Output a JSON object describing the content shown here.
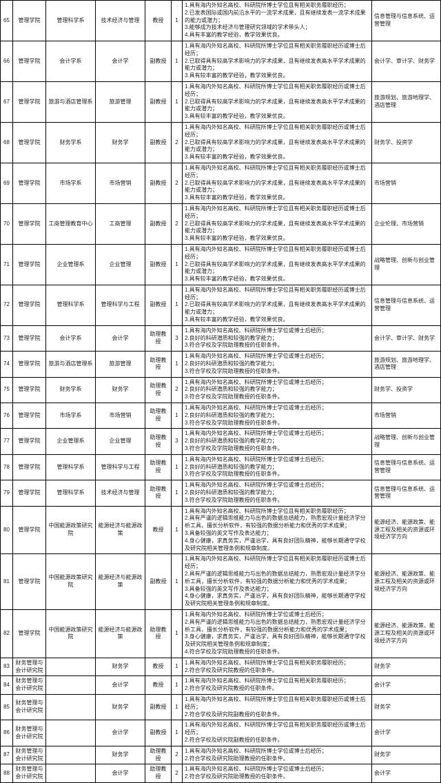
{
  "rows": [
    {
      "idx": "65",
      "college": "管理学院",
      "dept": "管理科学系",
      "major": "技术经济与管理",
      "title": "教授",
      "num": "1",
      "reqs": [
        "1.具有海内外知名高校、科研院所博士学位且有相关职务履职经历；",
        "2.已发表国际或国内前沿水平的一流学术成果，且有继续发表一流学术成果的能力或潜力；",
        "3.能够成为技术经济与管理研究领域的学术带头人；",
        "4.具有丰富的教学经验，教学效果优良。"
      ],
      "dir": "信息管理与信息系统、运营管理"
    },
    {
      "idx": "66",
      "college": "管理学院",
      "dept": "会计学系",
      "major": "会计学",
      "title": "副教授",
      "num": "1",
      "reqs": [
        "1.具有海内外知名高校、科研院所博士学位且有相关职务履职经历或博士后经历；",
        "2.已取得具有较高学术影响力的学术成果，且有继续发表高水平学术成果的能力或潜力；",
        "3.具有较丰富的教学经验，教学效果优良。"
      ],
      "dir": "会计学、审计学、财务学"
    },
    {
      "idx": "67",
      "college": "管理学院",
      "dept": "旅游与酒店管理系",
      "major": "旅游管理",
      "title": "副教授",
      "num": "1",
      "reqs": [
        "1.具有海内外知名高校、科研院所博士学位且有相关职务履职经历或博士后经历；",
        "2.已取得具有较高学术影响力的学术成果，且有继续发表高水平学术成果的能力或潜力；",
        "3.具有较丰富的教学经验，教学效果优良。"
      ],
      "dir": "旅游规划、旅游地理学、酒店管理"
    },
    {
      "idx": "68",
      "college": "管理学院",
      "dept": "财务学系",
      "major": "财务学",
      "title": "副教授",
      "num": "2",
      "reqs": [
        "1.具有海内外知名高校、科研院所博士学位且有相关职务履职经历或博士后经历；",
        "2.已取得具有较高学术影响力的学术成果，且有继续发表高水平学术成果的能力或潜力；",
        "3.具有较丰富的教学经验，教学效果优良。"
      ],
      "dir": "财务学、投资学"
    },
    {
      "idx": "69",
      "college": "管理学院",
      "dept": "市场学系",
      "major": "市场营销",
      "title": "副教授",
      "num": "2",
      "reqs": [
        "1.具有海内外知名高校、科研院所博士学位且有相关职务履职经历或博士后经历；",
        "2.已取得具有较高学术影响力的学术成果，且有继续发表高水平学术成果的能力或潜力；",
        "3.具有较丰富的教学经验，教学效果优良。"
      ],
      "dir": "市场营销"
    },
    {
      "idx": "70",
      "college": "管理学院",
      "dept": "工商管理教育中心",
      "major": "工商管理",
      "title": "副教授",
      "num": "2",
      "reqs": [
        "1.具有海内外知名高校、科研院所博士学位且有相关职务履职经历或博士后经历；",
        "2.已取得具有较高学术影响力的学术成果，且有继续发表高水平学术成果的能力或潜力；",
        "3.具有较丰富的教学经验，教学效果优良。"
      ],
      "dir": "企业伦理、市场营销"
    },
    {
      "idx": "71",
      "college": "管理学院",
      "dept": "企业管理系",
      "major": "企业管理",
      "title": "副教授",
      "num": "1",
      "reqs": [
        "1.具有海内外知名高校、科研院所博士学位且有相关职务履职经历或博士后经历；",
        "2.已取得具有较高学术影响力的学术成果，且有继续发表高水平学术成果的能力或潜力；",
        "3.具有较丰富的教学经验，教学效果优良。"
      ],
      "dir": "战略管理、创新与创业管理"
    },
    {
      "idx": "72",
      "college": "管理学院",
      "dept": "管理科学系",
      "major": "管理科学与工程",
      "title": "副教授",
      "num": "1",
      "reqs": [
        "1.具有海内外知名高校、科研院所博士学位且有相关职务履职经历或博士后经历；",
        "2.已取得具有较高学术影响力的学术成果，且有继续发表高水平学术成果的能力或潜力；",
        "3.具有较丰富的教学经验，教学效果优良。"
      ],
      "dir": "信息管理与信息系统、运营管理"
    },
    {
      "idx": "73",
      "college": "管理学院",
      "dept": "会计学系",
      "major": "会计学",
      "title": "助理教授",
      "num": "3",
      "reqs": [
        "1.具有海内外知名高校、科研院所博士学位或博士后经历；",
        "2.良好的科研潜质和较强的教学能力；",
        "3.符合学校及学院助理教授的任职条件。"
      ],
      "dir": "会计学、审计学、财务学"
    },
    {
      "idx": "74",
      "college": "管理学院",
      "dept": "旅游与酒店管理系",
      "major": "旅游管理",
      "title": "助理教授",
      "num": "1",
      "reqs": [
        "1.具有海内外知名高校、科研院所博士学位或博士后经历；",
        "2.良好的科研潜质和较强的教学能力；",
        "3.符合学校及学院助理教授的任职条件。"
      ],
      "dir": "旅游规划、旅游地理学、酒店管理"
    },
    {
      "idx": "75",
      "college": "管理学院",
      "dept": "财务学系",
      "major": "财务学",
      "title": "助理教授",
      "num": "2",
      "reqs": [
        "1.具有海内外知名高校、科研院所博士学位或博士后经历；",
        "2.良好的科研潜质和较强的教学能力；",
        "3.符合学校及学院助理教授的任职条件。"
      ],
      "dir": "财务学、投资学"
    },
    {
      "idx": "76",
      "college": "管理学院",
      "dept": "市场学系",
      "major": "市场营销",
      "title": "助理教授",
      "num": "1",
      "reqs": [
        "1.具有海内外知名高校、科研院所博士学位或博士后经历；",
        "2.良好的科研潜质和较强的教学能力；",
        "3.符合学校及学院助理教授的任职条件。"
      ],
      "dir": "市场营销"
    },
    {
      "idx": "77",
      "college": "管理学院",
      "dept": "企业管理系",
      "major": "企业管理",
      "title": "助理教授",
      "num": "3",
      "reqs": [
        "1.具有海内外知名高校、科研院所博士学位或博士后经历；",
        "2.良好的科研潜质和较强的教学能力；",
        "3.符合学校及学院助理教授的任职条件。"
      ],
      "dir": "战略管理、创新与创业管理"
    },
    {
      "idx": "78",
      "college": "管理学院",
      "dept": "管理科学系",
      "major": "管理科学与工程",
      "title": "助理教授",
      "num": "1",
      "reqs": [
        "1.具有海内外知名高校、科研院所博士学位或博士后经历；",
        "2.良好的科研潜质和较强的教学能力；",
        "3.符合学校及学院助理教授的任职条件。"
      ],
      "dir": "信息管理与信息系统、运营管理"
    },
    {
      "idx": "79",
      "college": "管理学院",
      "dept": "管理科学系",
      "major": "技术经济与管理",
      "title": "助理教授",
      "num": "1",
      "reqs": [
        "1.具有海内外知名高校、科研院所博士学位或博士后经历；",
        "2.良好的科研潜质和较强的教学能力；",
        "3.符合学校及学院助理教授的任职条件。"
      ],
      "dir": "信息管理与信息系统、运营管理"
    },
    {
      "idx": "80",
      "college": "管理学院",
      "dept": "中国能源政策研究院",
      "major": "能源经济与能源政策",
      "title": "教授",
      "num": "1",
      "reqs": [
        "1.具有海内外知名高校、科研院所博士学位且有相关职务履职经历；",
        "2.具有严谨的逻辑思维能力与出色的数据总结能力，熟悉宏观计量经济学分析工具，擅长分析软件，有较强的数据分析能力和优秀的学术成果；",
        "3.具备较强的英文写作及表达能力；",
        "4.身心健康，求真务实，严谨治学，具有良好团队精神，能够长期通守学校及研究院相关管理条例和规章制度。"
      ],
      "dir": "能源经济、能源政策、能源工程及相关的资源或环境经济学方向"
    },
    {
      "idx": "81",
      "college": "管理学院",
      "dept": "中国能源政策研究院",
      "major": "能源经济与能源政策",
      "title": "副教授",
      "num": "1",
      "reqs": [
        "1.具有海内外知名高校、科研院所博士学位且有相关职务履职经历或博士后经历；",
        "2.具有严谨的逻辑思维能力与出色的数据总结能力，熟悉宏观计量经济学分析工具，擅长分析软件，有较强的数据分析能力和优秀的学术成果；",
        "3.具备较强的英文写作及表达能力；",
        "4.身心健康，求真务实，严谨治学，具有良好团队精神，能够长期通守学校及研究院相关管理条例和规章制度。"
      ],
      "dir": "能源经济、能源政策、能源工程及相关的资源或环境经济学方向"
    },
    {
      "idx": "82",
      "college": "管理学院",
      "dept": "中国能源政策研究院",
      "major": "能源经济与能源政策",
      "title": "助理教授",
      "num": "1",
      "reqs": [
        "1.具有海内外知名高校、科研院所博士学位或博士后经历；",
        "2.具有严谨的逻辑思维能力与出色的数据总结能力，熟悉宏观计量经济学分析工具，擅长分析软件，有较强的数据分析能力和优秀的学术成果；",
        "3.身心健康，求真务实，严谨治学，具有良好团队精神，能够长期通守学校及研究院相关管理条例和规章制度；",
        "4.符合学校及学院助理教授的任职条件。"
      ],
      "dir": "能源经济、能源政策、能源工程及相关的资源或环境经济学方向"
    },
    {
      "idx": "83",
      "college": "财务管理与会计研究院",
      "dept": "",
      "major": "财务学",
      "title": "教授",
      "num": "1",
      "reqs": [
        "1.具有海内外知名高校、科研院所博士学位且有相关职务履职经历；",
        "2.符合学校及研究院教授的任职条件。"
      ],
      "dir": "财务学"
    },
    {
      "idx": "84",
      "college": "财务管理与会计研究院",
      "dept": "",
      "major": "会计学",
      "title": "教授",
      "num": "1",
      "reqs": [
        "1.具有海内外知名高校、科研院所博士学位且有相关职务履职经历；",
        "2.符合学校及研究院教授的任职条件。"
      ],
      "dir": "会计学"
    },
    {
      "idx": "85",
      "college": "财务管理与会计研究院",
      "dept": "",
      "major": "财务学",
      "title": "副教授",
      "num": "1",
      "reqs": [
        "1.具有海内外知名高校、科研院所博士学位且有相关职务履职经历或博士后经历；",
        "2.符合学校及研究院副教授的任职条件。"
      ],
      "dir": "财务学"
    },
    {
      "idx": "86",
      "college": "财务管理与会计研究院",
      "dept": "",
      "major": "会计学",
      "title": "副教授",
      "num": "1",
      "reqs": [
        "1.具有海内外知名高校、科研院所博士学位且有相关职务履职经历或博士后经历；",
        "2.符合学校及研究院副教授的任职条件。"
      ],
      "dir": "会计学"
    },
    {
      "idx": "87",
      "college": "财务管理与会计研究院",
      "dept": "",
      "major": "财务学",
      "title": "助理教授",
      "num": "2",
      "reqs": [
        "1.具有海内外知名高校、科研院所博士学位或博士后经历；",
        "2.符合学校及研究院助理教授的任职条件。"
      ],
      "dir": "财务学"
    },
    {
      "idx": "88",
      "college": "财务管理与会计研究院",
      "dept": "",
      "major": "会计学",
      "title": "助理教授",
      "num": "2",
      "reqs": [
        "1.具有海内外知名高校、科研院所博士学位或博士后经历；",
        "2.符合学校及研究院助理教授的任职条件。"
      ],
      "dir": "会计学"
    }
  ]
}
